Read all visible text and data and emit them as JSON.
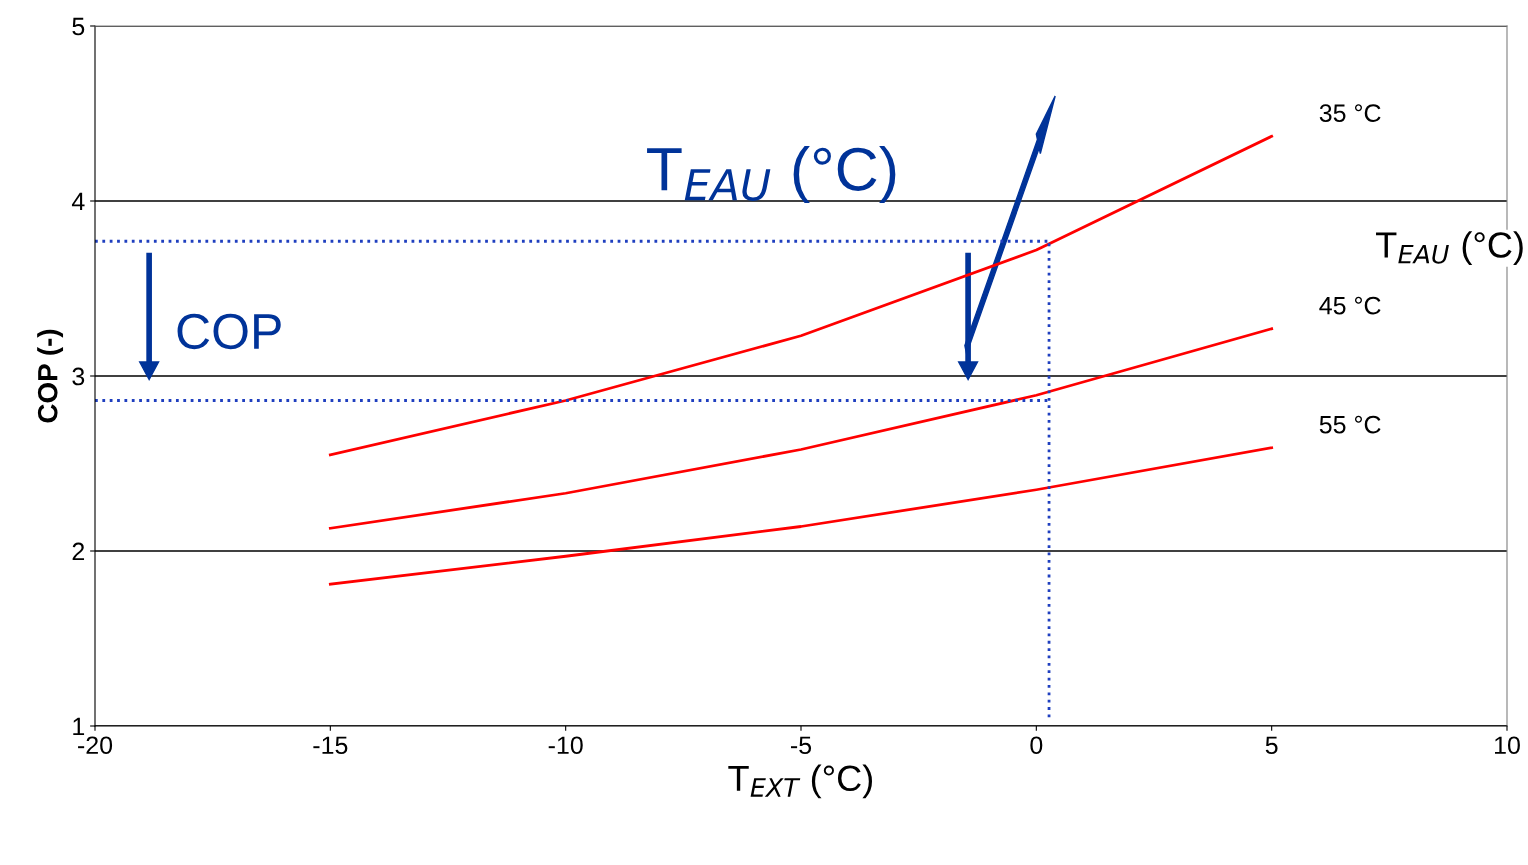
{
  "chart_data": {
    "type": "line",
    "xlabel": "T$_{EXT}$ (°C)",
    "ylabel": "COP (-)",
    "x": [
      -15,
      -10,
      -5,
      0,
      5
    ],
    "series": [
      {
        "name": "35 °C",
        "color": "#ff0000",
        "values": [
          2.55,
          2.86,
          3.23,
          3.72,
          4.37
        ]
      },
      {
        "name": "45 °C",
        "color": "#ff0000",
        "values": [
          2.13,
          2.33,
          2.58,
          2.89,
          3.27
        ]
      },
      {
        "name": "55 °C",
        "color": "#ff0000",
        "values": [
          1.81,
          1.97,
          2.14,
          2.35,
          2.59
        ]
      }
    ],
    "xlim": [
      -20,
      10
    ],
    "xticks": [
      -20,
      -15,
      -10,
      -5,
      0,
      5,
      10
    ],
    "ylim": [
      1,
      5
    ],
    "yticks": [
      1,
      2,
      3,
      4,
      5
    ],
    "grid": "y",
    "marker": "none",
    "line_style": "solid",
    "ref_lines": [
      {
        "axis": "y",
        "value": 3.77,
        "color": "#1f3fbf",
        "line_style": "dotted"
      },
      {
        "axis": "y",
        "value": 2.86,
        "color": "#1f3fbf",
        "line_style": "dotted"
      },
      {
        "axis": "x",
        "value": 0.27,
        "color": "#1f3fbf",
        "line_style": "dotted"
      }
    ],
    "annotations": [
      "T$_{EAU}$ (°C)",
      "COP",
      "T$_{EAU}$ (°C)"
    ]
  }
}
